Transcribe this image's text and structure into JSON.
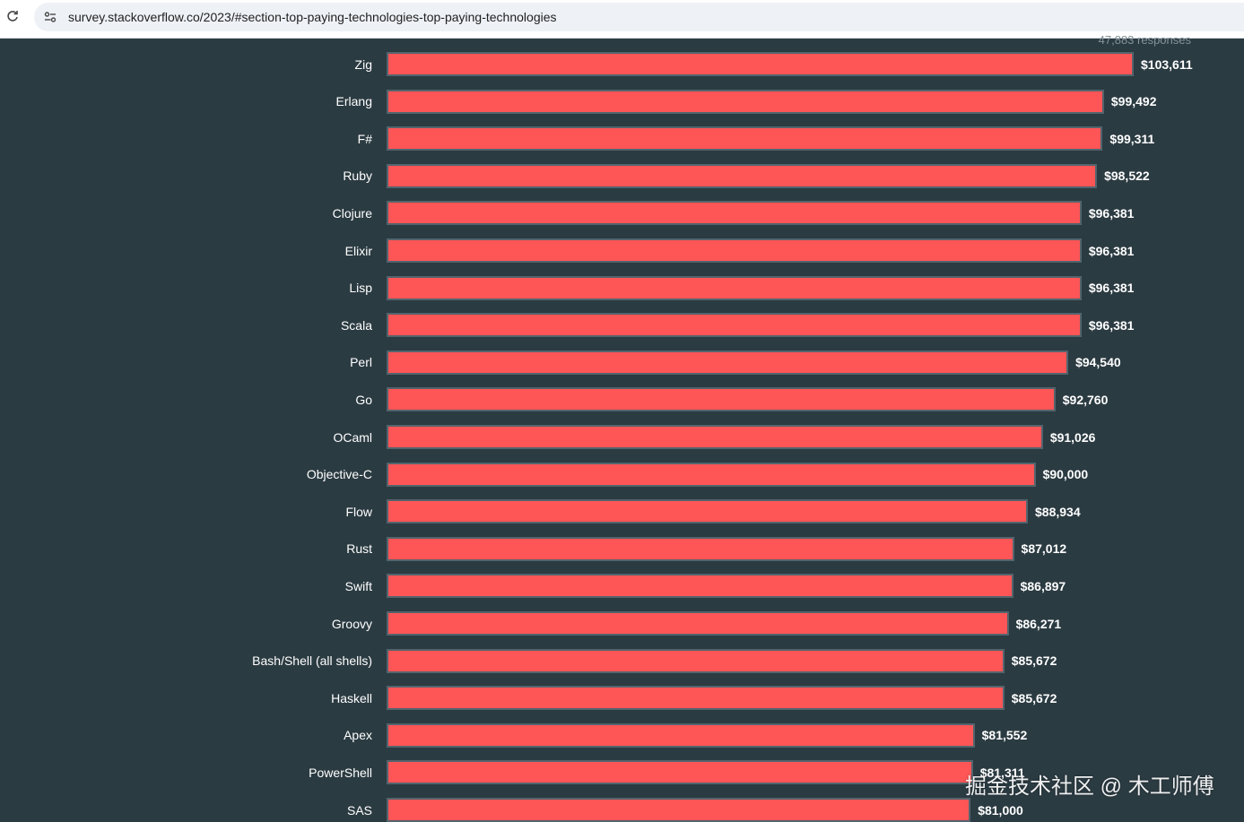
{
  "browser": {
    "url": "survey.stackoverflow.co/2023/#section-top-paying-technologies-top-paying-technologies"
  },
  "chart_data": {
    "type": "bar",
    "orientation": "horizontal",
    "responses_note": "47,883 responses",
    "value_prefix": "$",
    "bar_color": "#fe5556",
    "categories": [
      "Zig",
      "Erlang",
      "F#",
      "Ruby",
      "Clojure",
      "Elixir",
      "Lisp",
      "Scala",
      "Perl",
      "Go",
      "OCaml",
      "Objective-C",
      "Flow",
      "Rust",
      "Swift",
      "Groovy",
      "Bash/Shell (all shells)",
      "Haskell",
      "Apex",
      "PowerShell",
      "SAS"
    ],
    "values": [
      103611,
      99492,
      99311,
      98522,
      96381,
      96381,
      96381,
      96381,
      94540,
      92760,
      91026,
      90000,
      88934,
      87012,
      86897,
      86271,
      85672,
      85672,
      81552,
      81311,
      81000
    ],
    "value_labels": [
      "$103,611",
      "$99,492",
      "$99,311",
      "$98,522",
      "$96,381",
      "$96,381",
      "$96,381",
      "$96,381",
      "$94,540",
      "$92,760",
      "$91,026",
      "$90,000",
      "$88,934",
      "$87,012",
      "$86,897",
      "$86,271",
      "$85,672",
      "$85,672",
      "$81,552",
      "$81,311",
      "$81,000"
    ],
    "xlim": [
      0,
      103611
    ]
  },
  "watermark": "掘金技术社区 @ 木工师傅"
}
